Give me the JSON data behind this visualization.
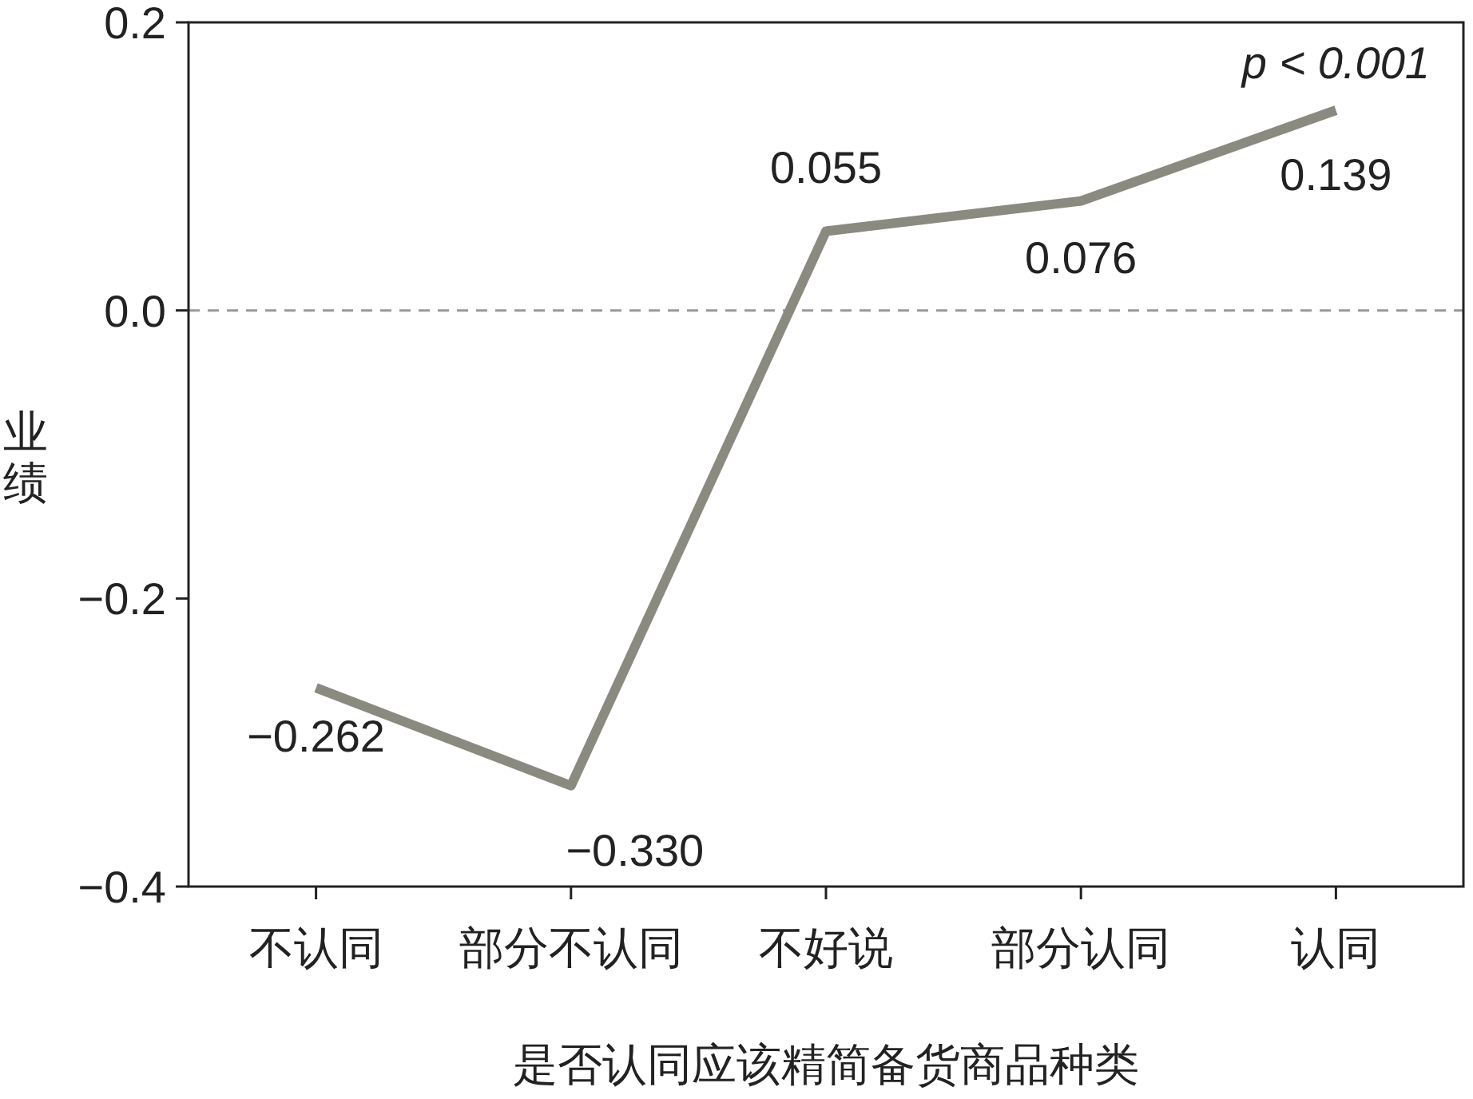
{
  "chart_data": {
    "type": "line",
    "xlabel": "是否认同应该精简备货商品种类",
    "ylabel": "业绩",
    "categories": [
      "不认同",
      "部分不认同",
      "不好说",
      "部分认同",
      "认同"
    ],
    "series": [
      {
        "color": "#8a8a80",
        "values": [
          -0.262,
          -0.33,
          0.055,
          0.076,
          0.139
        ]
      }
    ],
    "value_labels": [
      "−0.262",
      "−0.330",
      "0.055",
      "0.076",
      "0.139"
    ],
    "ylim": [
      -0.4,
      0.2
    ],
    "yticks": [
      {
        "value": -0.4,
        "label": "−0.4"
      },
      {
        "value": -0.2,
        "label": "−0.2"
      },
      {
        "value": 0,
        "label": "0.0"
      },
      {
        "value": 0.2,
        "label": "0.2"
      }
    ],
    "ref_lines": [
      {
        "axis": "y",
        "value": 0,
        "color": "#999999",
        "line_style": "dashed"
      }
    ],
    "annotations": [
      {
        "text": "p < 0.001",
        "x": "认同",
        "y": 0.139
      }
    ],
    "grid": false,
    "marker": "none",
    "line_style": "solid"
  }
}
